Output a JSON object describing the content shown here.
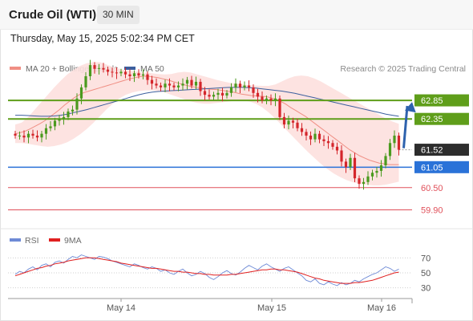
{
  "header": {
    "title": "Crude Oil (WTI)",
    "timeframe": "30 MIN",
    "datetime": "Thursday, May 15, 2025 5:02:34 PM CET"
  },
  "legend": {
    "ma20_label": "MA 20 + Bollinger Bands",
    "ma50_label": "MA 50",
    "credit": "Research © 2025 Trading Central",
    "rsi_label": "RSI",
    "rsi_ma_label": "9MA"
  },
  "colors": {
    "ma20": "#f08f84",
    "ma50": "#3c5f9e",
    "bollinger_fill": "#fde0de",
    "resistance_green": "#5f9e1a",
    "current_price_bg": "#2d2d2d",
    "pivot_blue": "#2a72d8",
    "support_red": "#e0505a",
    "candle_up": "#4a9a1e",
    "candle_down": "#d4262b",
    "rsi_line": "#6e8ad6",
    "rsi_ma": "#e02020",
    "arrow": "#2e62ad"
  },
  "chart_data": [
    {
      "type": "candlestick",
      "title": "Crude Oil (WTI)",
      "timeframe": "30 MIN",
      "x_ticks": [
        "May 14",
        "May 15",
        "May 16"
      ],
      "y_range": [
        59.5,
        63.5
      ],
      "levels": [
        {
          "value": 62.85,
          "label": "62.85",
          "kind": "resistance"
        },
        {
          "value": 62.35,
          "label": "62.35",
          "kind": "resistance"
        },
        {
          "value": 61.52,
          "label": "61.52",
          "kind": "current"
        },
        {
          "value": 61.05,
          "label": "61.05",
          "kind": "pivot"
        },
        {
          "value": 60.5,
          "label": "60.50",
          "kind": "support"
        },
        {
          "value": 59.9,
          "label": "59.90",
          "kind": "support"
        }
      ],
      "close": [
        61.9,
        61.9,
        61.85,
        61.95,
        61.9,
        61.85,
        61.95,
        62.1,
        62.15,
        62.3,
        62.35,
        62.4,
        62.55,
        62.6,
        62.9,
        63.2,
        63.5,
        63.8,
        63.7,
        63.72,
        63.68,
        63.62,
        63.6,
        63.58,
        63.62,
        63.55,
        63.5,
        63.58,
        63.52,
        63.55,
        63.4,
        63.3,
        63.25,
        63.2,
        63.3,
        63.25,
        63.2,
        63.25,
        63.3,
        63.4,
        63.25,
        63.35,
        63.1,
        63.0,
        62.95,
        63.0,
        63.05,
        62.98,
        63.05,
        63.2,
        63.3,
        63.2,
        63.25,
        63.2,
        63.05,
        62.95,
        62.85,
        62.9,
        62.85,
        62.9,
        62.4,
        62.2,
        62.3,
        62.25,
        62.1,
        62.0,
        61.9,
        61.8,
        61.95,
        61.8,
        61.75,
        61.7,
        61.6,
        61.5,
        61.2,
        61.05,
        61.3,
        60.75,
        60.6,
        60.65,
        60.8,
        60.9,
        60.95,
        61.1,
        61.35,
        61.7,
        61.9,
        61.52
      ],
      "ma20": [
        61.95,
        61.98,
        62.02,
        62.08,
        62.15,
        62.22,
        62.3,
        62.4,
        62.5,
        62.6,
        62.72,
        62.82,
        62.92,
        63.0,
        63.06,
        63.1,
        63.14,
        63.18,
        63.22,
        63.26,
        63.3,
        63.34,
        63.38,
        63.42,
        63.45,
        63.48,
        63.5,
        63.5,
        63.48,
        63.46,
        63.43,
        63.4,
        63.36,
        63.32,
        63.28,
        63.25,
        63.22,
        63.2,
        63.18,
        63.16,
        63.15,
        63.14,
        63.12,
        63.1,
        63.08,
        63.05,
        63.02,
        63.0,
        62.98,
        62.97,
        62.96,
        62.95,
        62.92,
        62.88,
        62.82,
        62.75,
        62.66,
        62.58,
        62.5,
        62.42,
        62.32,
        62.22,
        62.12,
        62.02,
        61.92,
        61.82,
        61.72,
        61.62,
        61.52,
        61.44,
        61.36,
        61.3,
        61.24,
        61.2,
        61.16,
        61.14,
        61.12,
        61.12,
        61.12
      ],
      "ma50": [
        62.45,
        62.45,
        62.44,
        62.43,
        62.42,
        62.42,
        62.43,
        62.45,
        62.48,
        62.52,
        62.56,
        62.6,
        62.65,
        62.7,
        62.75,
        62.8,
        62.85,
        62.9,
        62.95,
        63.0,
        63.04,
        63.07,
        63.09,
        63.1,
        63.11,
        63.12,
        63.13,
        63.14,
        63.15,
        63.16,
        63.17,
        63.18,
        63.19,
        63.2,
        63.2,
        63.2,
        63.19,
        63.18,
        63.16,
        63.14,
        63.12,
        63.1,
        63.07,
        63.04,
        63.0,
        62.96,
        62.92,
        62.88,
        62.84,
        62.8,
        62.76,
        62.72,
        62.68,
        62.64,
        62.6,
        62.56,
        62.52,
        62.48,
        62.45,
        62.42
      ],
      "bollinger_upper": [
        62.2,
        62.25,
        62.4,
        62.6,
        62.8,
        63.0,
        63.2,
        63.38,
        63.55,
        63.68,
        63.78,
        63.85,
        63.88,
        63.88,
        63.82,
        63.75,
        63.7,
        63.66,
        63.64,
        63.62,
        63.6,
        63.58,
        63.56,
        63.55,
        63.56,
        63.6,
        63.62,
        63.6,
        63.55,
        63.5,
        63.45,
        63.4,
        63.36,
        63.32,
        63.3,
        63.28,
        63.26,
        63.25,
        63.24,
        63.24,
        63.28,
        63.36,
        63.44,
        63.5,
        63.52,
        63.5,
        63.44,
        63.36,
        63.26,
        63.16,
        63.06,
        62.96,
        62.86,
        62.76,
        62.66,
        62.56,
        62.46,
        62.36,
        62.28,
        62.22
      ],
      "bollinger_lower": [
        61.7,
        61.7,
        61.68,
        61.65,
        61.62,
        61.6,
        61.62,
        61.66,
        61.72,
        61.82,
        61.94,
        62.08,
        62.24,
        62.42,
        62.6,
        62.76,
        62.9,
        63.0,
        63.06,
        63.1,
        63.12,
        63.12,
        63.1,
        63.06,
        63.0,
        62.94,
        62.88,
        62.82,
        62.78,
        62.76,
        62.76,
        62.78,
        62.8,
        62.82,
        62.84,
        62.84,
        62.82,
        62.76,
        62.66,
        62.52,
        62.36,
        62.18,
        62.0,
        61.82,
        61.64,
        61.46,
        61.3,
        61.14,
        61.0,
        60.88,
        60.78,
        60.7,
        60.64,
        60.6,
        60.58,
        60.56,
        60.56,
        60.58,
        60.62,
        60.66
      ],
      "projection": {
        "from": 61.52,
        "to": 62.85,
        "direction": "up"
      }
    },
    {
      "type": "line",
      "title": "RSI",
      "y_ticks": [
        70,
        50,
        30
      ],
      "y_range": [
        20,
        80
      ],
      "series": [
        {
          "name": "RSI",
          "values": [
            48,
            52,
            50,
            55,
            58,
            54,
            60,
            62,
            58,
            64,
            66,
            63,
            68,
            72,
            70,
            74,
            72,
            70,
            68,
            72,
            71,
            69,
            66,
            64,
            62,
            60,
            58,
            62,
            60,
            57,
            55,
            58,
            56,
            52,
            54,
            50,
            48,
            52,
            55,
            50,
            46,
            48,
            52,
            49,
            44,
            41,
            45,
            50,
            53,
            49,
            47,
            51,
            56,
            60,
            57,
            54,
            59,
            62,
            58,
            55,
            52,
            56,
            58,
            54,
            50,
            46,
            40,
            38,
            42,
            36,
            34,
            38,
            35,
            33,
            37,
            34,
            36,
            40,
            38,
            42,
            45,
            48,
            50,
            54,
            58,
            56,
            52,
            55
          ]
        },
        {
          "name": "9MA",
          "values": [
            46,
            48,
            50,
            52,
            54,
            56,
            57,
            59,
            60,
            62,
            63,
            64,
            66,
            67,
            68,
            69,
            70,
            70,
            70,
            69,
            68,
            67,
            66,
            65,
            63,
            62,
            61,
            60,
            59,
            58,
            57,
            56,
            56,
            55,
            54,
            53,
            52,
            52,
            51,
            51,
            50,
            49,
            49,
            48,
            48,
            47,
            47,
            47,
            47,
            48,
            48,
            49,
            50,
            51,
            52,
            53,
            54,
            54,
            55,
            55,
            54,
            54,
            53,
            52,
            51,
            49,
            47,
            45,
            43,
            42,
            40,
            39,
            38,
            37,
            36,
            36,
            36,
            37,
            37,
            38,
            39,
            40,
            42,
            44,
            46,
            48,
            50,
            51
          ]
        }
      ]
    }
  ]
}
